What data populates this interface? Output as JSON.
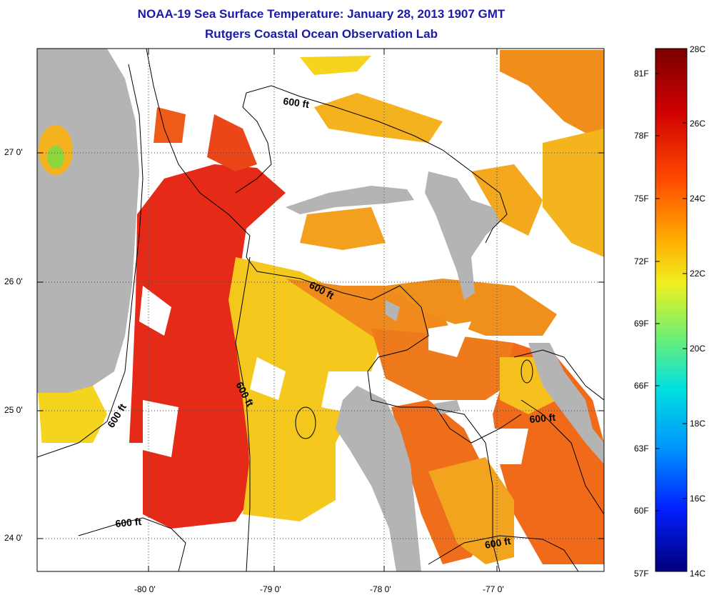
{
  "title_line1": "NOAA-19 Sea Surface Temperature:  January 28, 2013 1907 GMT",
  "title_line2": "Rutgers Coastal Ocean Observation Lab",
  "lat_labels": [
    "27 0'",
    "26 0'",
    "25 0'",
    "24 0'"
  ],
  "lon_labels": [
    "-80 0'",
    "-79 0'",
    "-78 0'",
    "-77 0'"
  ],
  "colorbar": {
    "celsius": [
      "28C",
      "26C",
      "24C",
      "22C",
      "20C",
      "18C",
      "16C",
      "14C"
    ],
    "fahrenheit": [
      "81F",
      "78F",
      "75F",
      "72F",
      "69F",
      "66F",
      "63F",
      "60F",
      "57F"
    ]
  },
  "contour_label": "600 ft",
  "colors": {
    "title": "#1a1aa6",
    "land": "#b4b4b4",
    "cloud": "#ffffff",
    "warm_red": "#e8281a",
    "orange": "#f27a1a",
    "yellow": "#f8d21c",
    "light_yellow": "#f9ee3c"
  }
}
